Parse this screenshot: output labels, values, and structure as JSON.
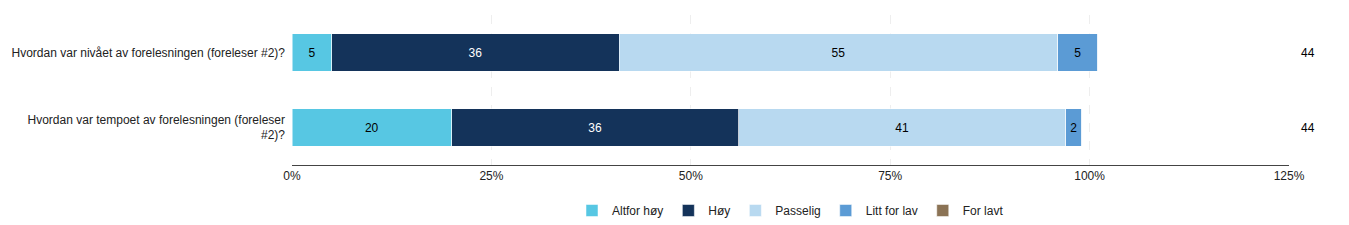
{
  "chart_data": {
    "type": "bar",
    "orientation": "horizontal",
    "stacked": true,
    "categories": [
      "Hvordan var nivået av forelesningen (foreleser #2)?",
      "Hvordan var tempoet av forelesningen (foreleser\n#2)?"
    ],
    "series": [
      {
        "name": "Altfor høy",
        "color": "#57c7e3",
        "values": [
          5,
          20
        ]
      },
      {
        "name": "Høy",
        "color": "#14335a",
        "values": [
          36,
          36
        ]
      },
      {
        "name": "Passelig",
        "color": "#b8d9f0",
        "values": [
          55,
          41
        ]
      },
      {
        "name": "Litt for lav",
        "color": "#5b9bd5",
        "values": [
          5,
          2
        ]
      },
      {
        "name": "For lavt",
        "color": "#8b7355",
        "values": [
          0,
          0
        ]
      }
    ],
    "annotations": [
      "44",
      "44"
    ],
    "xlim": [
      0,
      125
    ],
    "xticks": [
      {
        "value": 0,
        "label": "0%"
      },
      {
        "value": 25,
        "label": "25%"
      },
      {
        "value": 50,
        "label": "50%"
      },
      {
        "value": 75,
        "label": "75%"
      },
      {
        "value": 100,
        "label": "100%"
      },
      {
        "value": 125,
        "label": "125%"
      }
    ],
    "grid": true,
    "legend": "bottom",
    "data_labels": true
  }
}
